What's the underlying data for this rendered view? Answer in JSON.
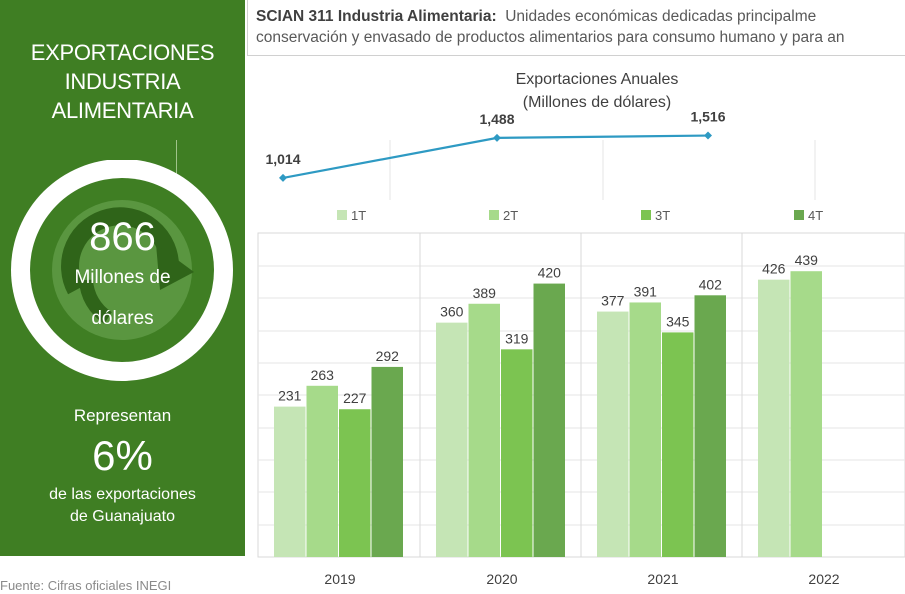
{
  "panel": {
    "title_lines": [
      "EXPORTACIONES",
      "INDUSTRIA",
      "ALIMENTARIA"
    ],
    "value": "866",
    "unit_line1": "Millones de",
    "unit_line2": "dólares",
    "represent": "Representan",
    "percent": "6%",
    "desc_lines": [
      "de las exportaciones",
      "de Guanajuato"
    ]
  },
  "header": {
    "bold": "SCIAN 311 Industria Alimentaria:",
    "line1_rest": "Unidades económicas dedicadas principalme",
    "line2": "conservación y envasado de productos alimentarios para consumo humano y para an"
  },
  "source": "Fuente: Cifras oficiales INEGI",
  "colors": {
    "panel_bg": "#3f7e23",
    "q1": "#c5e5b5",
    "q2": "#a6da8a",
    "q3": "#7cc451",
    "q4": "#6aa84f",
    "line": "#2e9ac3"
  },
  "chart_data": [
    {
      "type": "line",
      "title": "Exportaciones Anuales",
      "subtitle": "(Millones de dólares)",
      "x": [
        "2019",
        "2020",
        "2021"
      ],
      "values": [
        1014,
        1488,
        1516
      ],
      "labels": [
        "1,014",
        "1,488",
        "1,516"
      ],
      "ylim": [
        800,
        1700
      ]
    },
    {
      "type": "bar",
      "categories": [
        "2019",
        "2020",
        "2021",
        "2022"
      ],
      "series": [
        {
          "name": "1T",
          "values": [
            231,
            360,
            377,
            426
          ]
        },
        {
          "name": "2T",
          "values": [
            263,
            389,
            391,
            439
          ]
        },
        {
          "name": "3T",
          "values": [
            227,
            319,
            345,
            null
          ]
        },
        {
          "name": "4T",
          "values": [
            292,
            420,
            402,
            null
          ]
        }
      ],
      "ylim": [
        0,
        500
      ],
      "grid": true,
      "legend": "top"
    }
  ]
}
